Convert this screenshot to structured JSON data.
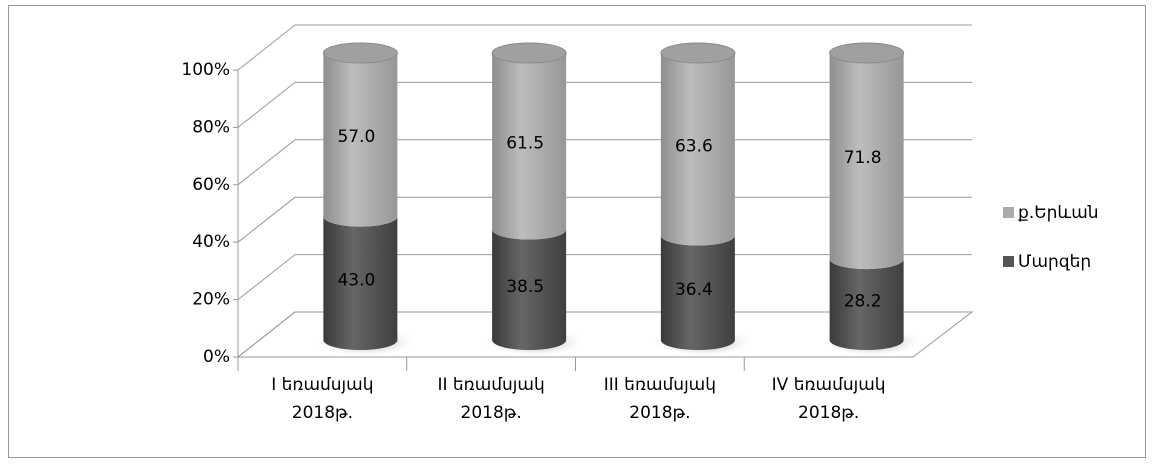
{
  "chart_data": {
    "type": "bar3d",
    "categories": [
      [
        "I եռամսյակ",
        "2018թ."
      ],
      [
        "II եռամսյակ",
        "2018թ."
      ],
      [
        "III եռամսյակ",
        "2018թ."
      ],
      [
        "IV եռամսյակ",
        "2018թ."
      ]
    ],
    "series": [
      {
        "name": "Մարզեր",
        "color": "#555555",
        "values": [
          43.0,
          38.5,
          36.4,
          28.2
        ],
        "value_labels": [
          "43.0",
          "38.5",
          "36.4",
          "28.2"
        ]
      },
      {
        "name": "ք.Երևան",
        "color": "#ababab",
        "values": [
          57.0,
          61.5,
          63.6,
          71.8
        ],
        "value_labels": [
          "57.0",
          "61.5",
          "63.6",
          "71.8"
        ]
      }
    ],
    "ylim": [
      0,
      100
    ],
    "yticks": [
      {
        "value": 0,
        "label": "0%"
      },
      {
        "value": 20,
        "label": "20%"
      },
      {
        "value": 40,
        "label": "40%"
      },
      {
        "value": 60,
        "label": "60%"
      },
      {
        "value": 80,
        "label": "80%"
      },
      {
        "value": 100,
        "label": "100%"
      }
    ],
    "grid": true,
    "legend": "right"
  }
}
